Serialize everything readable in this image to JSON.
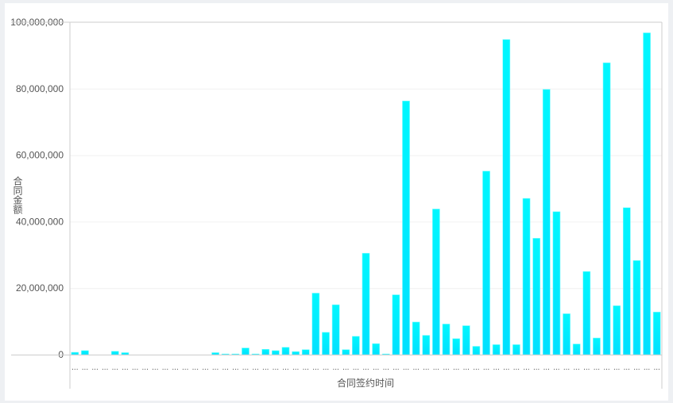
{
  "chart_data": {
    "type": "bar",
    "xlabel": "合同签约时间",
    "ylabel": "合同金额",
    "ylim": [
      0,
      100000000
    ],
    "yticks": [
      "0",
      "20,000,000",
      "40,000,000",
      "60,000,000",
      "80,000,000",
      "100,000,000"
    ],
    "ytick_values": [
      0,
      20000000,
      40000000,
      60000000,
      80000000,
      100000000
    ],
    "x_tick_label": "...",
    "grid": true,
    "bar_color_top": "#00f7ff",
    "bar_color_bottom": "#00e0ff",
    "values": [
      700000,
      1200000,
      0,
      0,
      1000000,
      600000,
      0,
      0,
      0,
      0,
      0,
      0,
      0,
      0,
      600000,
      200000,
      200000,
      2000000,
      200000,
      1600000,
      1200000,
      2200000,
      900000,
      1500000,
      18500000,
      6700000,
      15000000,
      1500000,
      5500000,
      30500000,
      3300000,
      200000,
      18000000,
      76300000,
      9800000,
      5800000,
      43800000,
      9200000,
      4800000,
      8700000,
      2500000,
      55200000,
      3000000,
      94800000,
      3000000,
      47000000,
      35000000,
      79800000,
      43000000,
      12300000,
      3200000,
      25000000,
      5000000,
      87800000,
      14700000,
      44200000,
      28300000,
      96800000,
      12800000
    ]
  }
}
